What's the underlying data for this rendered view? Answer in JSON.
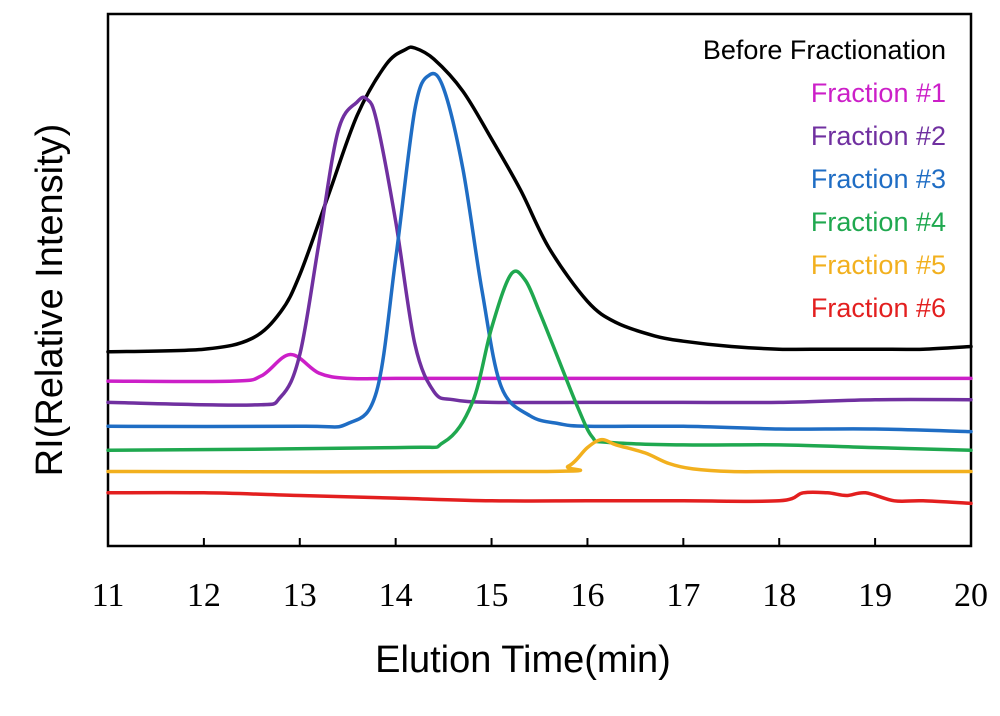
{
  "chart_data": {
    "type": "line",
    "xlabel": "Elution Time(min)",
    "ylabel": "RI(Relative Intensity)",
    "xlim": [
      11,
      20
    ],
    "xticks": [
      "11",
      "12",
      "13",
      "14",
      "15",
      "16",
      "17",
      "18",
      "19",
      "20"
    ],
    "ylim": [
      0,
      100
    ],
    "y_ticks_shown": false,
    "legend_position": "top-right",
    "series": [
      {
        "name": "Before Fractionation",
        "color": "#000000",
        "x": [
          11.0,
          12.0,
          12.5,
          12.8,
          13.0,
          13.3,
          13.6,
          13.9,
          14.1,
          14.2,
          14.4,
          14.7,
          15.0,
          15.3,
          15.6,
          16.0,
          16.3,
          16.7,
          17.0,
          17.5,
          18.0,
          18.5,
          19.0,
          19.5,
          20.0
        ],
        "y": [
          36.5,
          37.0,
          39.0,
          44.0,
          51.0,
          66.0,
          81.0,
          90.5,
          93.3,
          93.6,
          91.5,
          85.5,
          76.5,
          67.0,
          56.0,
          46.0,
          42.0,
          39.5,
          38.5,
          37.5,
          37.0,
          37.0,
          37.0,
          37.0,
          37.5
        ]
      },
      {
        "name": "Fraction #1",
        "color": "#cc1fc8",
        "x": [
          11.0,
          12.3,
          12.6,
          12.9,
          13.2,
          13.5,
          14.0,
          15.0,
          16.0,
          17.0,
          18.0,
          19.0,
          20.0
        ],
        "y": [
          31.0,
          31.0,
          32.0,
          36.0,
          32.5,
          31.5,
          31.5,
          31.5,
          31.5,
          31.5,
          31.5,
          31.5,
          31.5
        ]
      },
      {
        "name": "Fraction #2",
        "color": "#7030a0",
        "x": [
          11.0,
          12.5,
          12.8,
          13.0,
          13.2,
          13.4,
          13.6,
          13.7,
          13.8,
          14.0,
          14.2,
          14.4,
          14.6,
          15.0,
          16.0,
          17.0,
          18.0,
          19.0,
          20.0
        ],
        "y": [
          27.0,
          26.5,
          28.0,
          36.0,
          57.0,
          78.0,
          83.5,
          84.0,
          80.0,
          61.0,
          38.0,
          29.0,
          27.5,
          27.0,
          27.0,
          27.0,
          27.0,
          27.5,
          27.5
        ]
      },
      {
        "name": "Fraction #3",
        "color": "#1f6dc4",
        "x": [
          11.0,
          13.0,
          13.5,
          13.8,
          14.0,
          14.2,
          14.35,
          14.5,
          14.7,
          14.9,
          15.1,
          15.4,
          15.7,
          16.0,
          17.0,
          18.0,
          19.0,
          20.0
        ],
        "y": [
          22.5,
          22.5,
          23.0,
          29.0,
          54.0,
          82.0,
          88.5,
          86.0,
          71.0,
          48.0,
          30.0,
          24.5,
          23.0,
          22.5,
          22.5,
          22.0,
          22.0,
          21.5
        ]
      },
      {
        "name": "Fraction #4",
        "color": "#1fa84f",
        "x": [
          11.0,
          14.0,
          14.5,
          14.8,
          15.0,
          15.2,
          15.35,
          15.5,
          15.7,
          15.9,
          16.05,
          16.2,
          17.0,
          18.0,
          19.0,
          20.0
        ],
        "y": [
          18.0,
          18.5,
          19.5,
          27.0,
          41.0,
          51.0,
          50.0,
          44.0,
          35.0,
          26.0,
          20.5,
          19.5,
          19.0,
          19.0,
          18.5,
          18.0
        ]
      },
      {
        "name": "Fraction #5",
        "color": "#f2b01e",
        "x": [
          11.0,
          15.5,
          15.8,
          16.0,
          16.15,
          16.3,
          16.6,
          16.85,
          17.1,
          17.5,
          18.0,
          19.0,
          20.0
        ],
        "y": [
          14.0,
          14.0,
          15.0,
          18.5,
          20.0,
          19.0,
          17.5,
          15.5,
          14.5,
          14.0,
          14.0,
          14.0,
          14.0
        ]
      },
      {
        "name": "Fraction #6",
        "color": "#e31f1f",
        "x": [
          11.0,
          12.0,
          13.0,
          14.0,
          15.0,
          16.0,
          17.0,
          18.0,
          18.25,
          18.5,
          18.7,
          18.9,
          19.2,
          19.5,
          20.0
        ],
        "y": [
          10.0,
          10.0,
          9.5,
          9.0,
          8.5,
          8.5,
          8.5,
          8.5,
          10.0,
          10.0,
          9.5,
          10.0,
          8.5,
          8.5,
          8.0
        ]
      }
    ]
  }
}
